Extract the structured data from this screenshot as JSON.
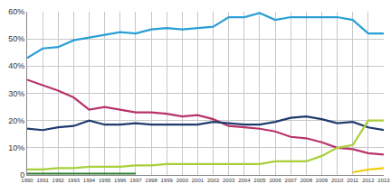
{
  "chart_data": {
    "type": "line",
    "x": [
      1990,
      1991,
      1992,
      1993,
      1994,
      1995,
      1996,
      1997,
      1998,
      1999,
      2000,
      2001,
      2002,
      2003,
      2004,
      2005,
      2006,
      2007,
      2008,
      2009,
      2010,
      2011,
      2012,
      2013
    ],
    "xlim": [
      1990,
      2013
    ],
    "xticks": [
      1990,
      1991,
      1992,
      1993,
      1994,
      1995,
      1996,
      1997,
      1998,
      1999,
      2000,
      2001,
      2002,
      2003,
      2004,
      2005,
      2006,
      2007,
      2008,
      2009,
      2010,
      2011,
      2012,
      2013
    ],
    "ylim": [
      0,
      60
    ],
    "yticks": [
      0,
      {
        "value": 10,
        "label": "10%"
      },
      {
        "value": 20,
        "label": "20%"
      },
      {
        "value": 30,
        "label": "30%"
      },
      {
        "value": 40,
        "label": "40%"
      },
      {
        "value": 50,
        "label": "50%"
      },
      {
        "value": 60,
        "label": "60%"
      }
    ],
    "grid": true,
    "series": [
      {
        "color": "#2a9fd6",
        "values": [
          43,
          46.5,
          47,
          49.5,
          50.5,
          51.5,
          52.5,
          52,
          53.5,
          54,
          53.5,
          54,
          54.5,
          58,
          58,
          59.5,
          57,
          58,
          58,
          58,
          58,
          57,
          52,
          52
        ]
      },
      {
        "color": "#b8336a",
        "values": [
          35,
          33,
          31,
          28.5,
          24,
          25,
          24,
          23,
          23,
          22.5,
          21.5,
          22,
          20.5,
          18,
          17.5,
          17,
          16,
          14,
          13.5,
          12,
          10,
          9.5,
          8,
          7.5
        ]
      },
      {
        "color": "#1f3c6e",
        "values": [
          17,
          16.5,
          17.5,
          18,
          20,
          18.5,
          18.5,
          19,
          18.5,
          18.5,
          18.5,
          18.5,
          19.5,
          19,
          18.5,
          18.5,
          19.5,
          21,
          21.5,
          20.5,
          19,
          19.5,
          17.5,
          16.5
        ]
      },
      {
        "color": "#a8cf3a",
        "values": [
          2,
          2,
          2.5,
          2.5,
          3,
          3,
          3,
          3.5,
          3.5,
          4,
          4,
          4,
          4,
          4,
          4,
          4,
          5,
          5,
          5,
          7,
          10,
          11,
          20,
          20
        ]
      },
      {
        "color": "#f0cc00",
        "values": [
          null,
          null,
          null,
          null,
          null,
          null,
          null,
          null,
          null,
          null,
          null,
          null,
          null,
          null,
          null,
          null,
          null,
          null,
          null,
          null,
          null,
          1,
          2,
          2.5
        ]
      },
      {
        "color": "#2e7d32",
        "values": [
          0.5,
          0.5,
          0.5,
          0.5,
          0.5,
          0.5,
          0.5,
          0.5,
          null,
          null,
          null,
          null,
          null,
          null,
          null,
          null,
          null,
          null,
          null,
          null,
          null,
          null,
          null,
          null
        ]
      }
    ]
  }
}
